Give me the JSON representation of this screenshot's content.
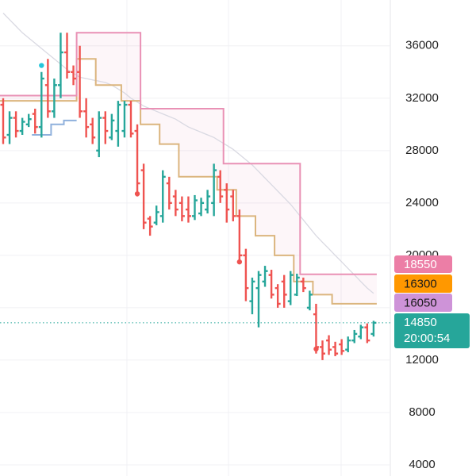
{
  "chart_data": {
    "type": "ohlc",
    "ylim": [
      3150,
      39500
    ],
    "yticks": [
      4000,
      8000,
      12000,
      16000,
      20000,
      24000,
      28000,
      32000,
      36000
    ],
    "grid": true,
    "up_color": "#26a69a",
    "down_color": "#ef5350",
    "open": [
      31500,
      29200,
      30500,
      29500,
      30000,
      30800,
      29800,
      33000,
      31000,
      33000,
      35500,
      34000,
      34000,
      31000,
      30000,
      28000,
      30500,
      29000,
      29500,
      29500,
      31500,
      29500,
      26500,
      22800,
      22500,
      23000,
      25500,
      24500,
      24000,
      23500,
      23000,
      23200,
      23500,
      24000,
      26000,
      25000,
      24500,
      23000,
      20000,
      16500,
      17500,
      18000,
      18500,
      17500,
      18000,
      16500,
      17000,
      18000,
      16000,
      15500,
      13000,
      13500,
      13000,
      13200,
      12800,
      13500,
      13800,
      14500,
      14000
    ],
    "high": [
      32000,
      31000,
      31000,
      30500,
      30800,
      31200,
      34000,
      35000,
      33500,
      37000,
      37000,
      34500,
      36000,
      32000,
      30500,
      31000,
      31000,
      30800,
      31800,
      31800,
      31800,
      30000,
      27000,
      23000,
      23800,
      26500,
      26000,
      25000,
      24500,
      24500,
      24600,
      24400,
      25000,
      27000,
      26500,
      25500,
      25000,
      23500,
      20500,
      18300,
      18800,
      19200,
      18900,
      17800,
      18500,
      18800,
      18600,
      18300,
      17300,
      16300,
      13500,
      13900,
      13400,
      13600,
      13800,
      14300,
      14700,
      14800,
      15000
    ],
    "low": [
      28500,
      28500,
      29000,
      29200,
      29800,
      29300,
      29000,
      30500,
      30500,
      32000,
      33500,
      33000,
      30500,
      29000,
      28500,
      27500,
      28500,
      28800,
      28300,
      29000,
      29000,
      24500,
      22000,
      21500,
      22300,
      22500,
      23500,
      23000,
      22600,
      22500,
      22700,
      23000,
      23200,
      23000,
      24000,
      22500,
      22600,
      19500,
      16500,
      15500,
      14500,
      17600,
      16700,
      16000,
      16000,
      16200,
      16900,
      17200,
      15800,
      12500,
      12000,
      12400,
      12300,
      12400,
      12600,
      13300,
      13600,
      13300,
      13800
    ],
    "close": [
      29000,
      30500,
      29500,
      30200,
      30400,
      29800,
      33500,
      31000,
      33000,
      35500,
      34000,
      33500,
      31000,
      29800,
      29000,
      30500,
      29500,
      30300,
      31500,
      31500,
      29300,
      25500,
      22500,
      22200,
      23300,
      26000,
      24000,
      23500,
      23000,
      23000,
      24200,
      24000,
      24500,
      26500,
      24500,
      23500,
      23000,
      20000,
      17500,
      18000,
      18500,
      18800,
      17000,
      16300,
      17000,
      18500,
      18300,
      17500,
      17000,
      13000,
      12500,
      12800,
      12500,
      12700,
      13500,
      14000,
      14500,
      13500,
      14850
    ],
    "overlays": [
      {
        "color": "#d9d9e2",
        "style": "line",
        "values": [
          38500,
          38000,
          37500,
          37000,
          36600,
          36200,
          35800,
          35400,
          35000,
          34600,
          34200,
          33900,
          33600,
          33500,
          33400,
          33300,
          33200,
          33000,
          32700,
          32400,
          32000,
          31700,
          31400,
          31200,
          31000,
          30800,
          30600,
          30400,
          30100,
          29800,
          29600,
          29400,
          29200,
          29000,
          28700,
          28400,
          28100,
          27700,
          27300,
          26900,
          26400,
          25900,
          25400,
          24900,
          24400,
          23900,
          23300,
          22700,
          22100,
          21500,
          21000,
          20500,
          20000,
          19500,
          19000,
          18500,
          18000,
          17500,
          17100
        ]
      },
      {
        "color": "#dbb57e",
        "style": "step",
        "values": [
          31800,
          31800,
          31800,
          31800,
          31800,
          31800,
          31800,
          31800,
          31800,
          31800,
          31800,
          31800,
          35000,
          35000,
          35000,
          33000,
          33000,
          33000,
          33000,
          31800,
          31800,
          31800,
          30000,
          30000,
          30000,
          28500,
          28500,
          28500,
          26000,
          26000,
          26000,
          26000,
          26000,
          26000,
          25000,
          25000,
          25000,
          23000,
          23000,
          23000,
          21500,
          21500,
          21500,
          20000,
          20000,
          20000,
          18000,
          18000,
          18000,
          17000,
          17000,
          17000,
          16300,
          16300,
          16300,
          16300,
          16300,
          16300,
          16300
        ]
      },
      {
        "color": "#e991b5",
        "style": "step",
        "values": [
          32200,
          32200,
          32200,
          32200,
          32200,
          32200,
          32200,
          32200,
          32200,
          32200,
          32200,
          32200,
          37000,
          37000,
          37000,
          37000,
          37000,
          37000,
          37000,
          37000,
          37000,
          37000,
          31200,
          31200,
          31200,
          31200,
          31200,
          31200,
          31200,
          31200,
          31200,
          31200,
          31200,
          31200,
          31200,
          27000,
          27000,
          27000,
          27000,
          27000,
          27000,
          27000,
          27000,
          27000,
          27000,
          27000,
          27000,
          18550,
          18550,
          18550,
          18550,
          18550,
          18550,
          18550,
          18550,
          18550,
          18550,
          18550,
          18550
        ]
      },
      {
        "color": "#8fb0dc",
        "style": "step",
        "values": [
          null,
          null,
          null,
          null,
          null,
          29200,
          29200,
          29200,
          30000,
          30000,
          30300,
          30300,
          null,
          null,
          null,
          null,
          null,
          null,
          null,
          null,
          null,
          null,
          null,
          null,
          null,
          null,
          null,
          null,
          null,
          null,
          null,
          null,
          null,
          null,
          null,
          null,
          null,
          null,
          null,
          null,
          null,
          null,
          null,
          null,
          null,
          null,
          null,
          null,
          null,
          null,
          null,
          null,
          null,
          null,
          null,
          null,
          null,
          null,
          null
        ]
      }
    ],
    "signals": [
      {
        "color": "#26c6da",
        "values": [
          null,
          null,
          null,
          null,
          null,
          null,
          34500,
          null,
          null,
          null,
          null,
          null,
          null,
          null,
          null,
          null,
          null,
          null,
          null,
          null,
          null,
          null,
          null,
          null,
          null,
          null,
          null,
          null,
          null,
          null,
          null,
          null,
          null,
          null,
          null,
          null,
          null,
          null,
          null,
          null,
          null,
          null,
          null,
          null,
          null,
          null,
          null,
          null,
          null,
          null,
          null,
          null,
          null,
          null,
          null,
          null,
          null,
          null,
          null
        ]
      },
      {
        "color": "#ef5350",
        "values": [
          null,
          null,
          null,
          null,
          null,
          null,
          null,
          null,
          null,
          null,
          null,
          null,
          null,
          null,
          null,
          null,
          null,
          null,
          null,
          null,
          null,
          24700,
          null,
          null,
          null,
          null,
          null,
          null,
          null,
          null,
          null,
          null,
          null,
          null,
          null,
          null,
          null,
          19500,
          null,
          null,
          null,
          null,
          null,
          null,
          null,
          null,
          null,
          null,
          null,
          12850,
          null,
          null,
          null,
          null,
          null,
          null,
          null,
          null,
          null
        ]
      }
    ],
    "price_labels": [
      {
        "value": 18550,
        "color": "#ec7ea6",
        "text_color": "#ffffff"
      },
      {
        "value": 16300,
        "color": "#ff9800",
        "text_color": "#1a1a1a"
      },
      {
        "value": 16050,
        "color": "#ce93d8",
        "text_color": "#1a1a1a"
      },
      {
        "value": 14850,
        "color": "#26a69a",
        "text_color": "#ffffff"
      }
    ],
    "countdown": "20:00:54"
  }
}
